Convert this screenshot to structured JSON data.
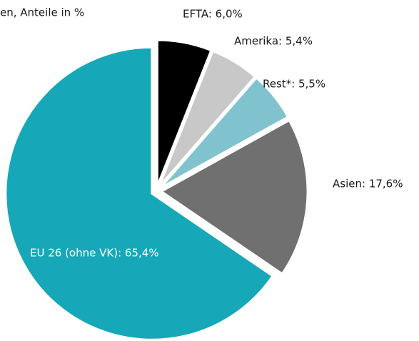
{
  "chart_data": {
    "type": "pie",
    "title": "en, Anteile in %",
    "values": [
      6.0,
      5.4,
      5.5,
      17.6,
      65.4
    ],
    "value_labels": [
      "EFTA: 6,0%",
      "Amerika: 5,4%",
      "Rest*: 5,5%",
      "Asien: 17,6%",
      "EU 26 (ohne VK): 65,4%"
    ],
    "colors": [
      "#000000",
      "#c8c8c8",
      "#80c3cf",
      "#707070",
      "#16a8b8"
    ]
  }
}
